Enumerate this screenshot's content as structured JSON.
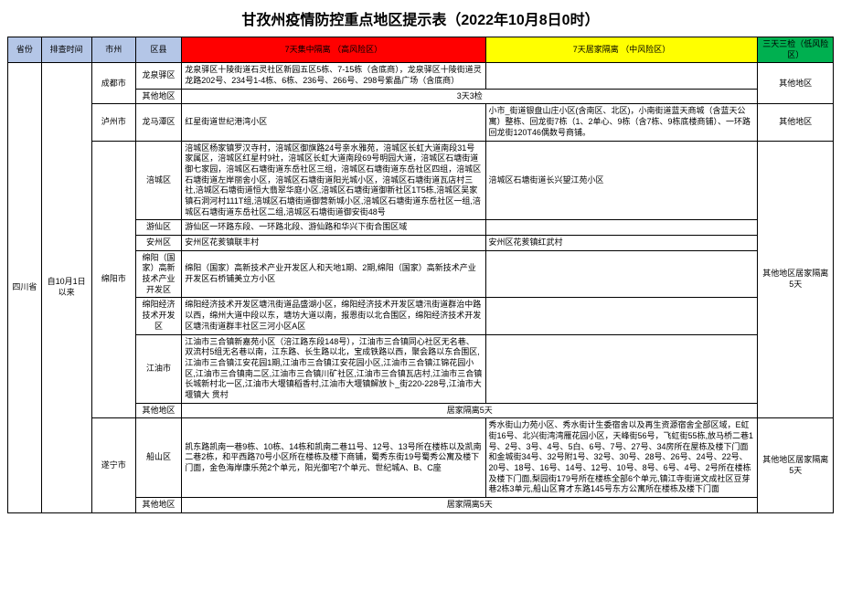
{
  "title": "甘孜州疫情防控重点地区提示表（2022年10月8日0时）",
  "headers": {
    "province": "省份",
    "time": "排查时间",
    "city": "市州",
    "district": "区县",
    "high": "7天集中隔离 （高风险区）",
    "mid": "7天居家隔离  （中风险区）",
    "low": "三天三检（低风险区）"
  },
  "province": "四川省",
  "time": "自10月1日以来",
  "cities": [
    {
      "name": "成都市",
      "low": "其他地区",
      "rows": [
        {
          "district": "龙泉驿区",
          "high": "龙泉驿区十陵街道石灵社区新园五区5栋、7-15栋（含底商），龙泉驿区十陵街道灵龙路202号、234号1-4栋、6栋、236号、266号、298号紫晶广场（含底商）",
          "mid": ""
        },
        {
          "district": "其他地区",
          "high": "",
          "mid": "",
          "centerText": "3天3检",
          "spanHighMid": true
        }
      ]
    },
    {
      "name": "泸州市",
      "low": "其他地区",
      "rows": [
        {
          "district": "龙马潭区",
          "high": "红星街道世纪港湾小区",
          "mid": "小市_街道银盘山庄小区(含南区、北区)，小南街道蓝天商城（含蓝天公寓）整栋、回龙街7栋（1、2单心、9栋（含7栋、9栋底楼商铺）、一环路回龙街120T46偶数号商铺。"
        }
      ]
    },
    {
      "name": "绵阳市",
      "low": "其他地区居家隔离5天",
      "rows": [
        {
          "district": "涪城区",
          "high": "涪城区杨家镇罗汉寺村，涪城区御旗路24号亲水雅苑，涪城区长虹大道南段31号家属区，涪城区红星村9社，涪城区长虹大道南段69号明园大道，涪城区石塘街道御七家园，涪城区石塘街道东岳社区三组，涪城区石塘街道东岳社区四组，涪城区石塘街道左岸丽舍小区，涪城区石塘街道阳光城小区，涪城区石塘街道瓦店村三社,涪城区石塘街道恒大翡翠华庭小区,涪城区石塘街道御新社区1T5栋,涪城区吴家镇石洞河村111T组,涪城区石塘街道御营新城小区,涪城区石塘街道东岳社区一组,涪城区石塘街道东岳社区二组,涪城区石塘街道御安街48号",
          "mid": "涪城区石塘街道长兴望江苑小区"
        },
        {
          "district": "游仙区",
          "high": "游仙区一环路东段、一环路北段、游仙路和华兴下街合围区域",
          "mid": ""
        },
        {
          "district": "安州区",
          "high": "安州区花荄镇联丰村",
          "mid": "安州区花荄镇红武村"
        },
        {
          "district": "绵阳（国家）高新技术产业开发区",
          "high": "绵阳（国家）高新技术产业开发区人和天地1期、2期,绵阳（国家）高新技术产业开发区石桥铺美立方小区",
          "mid": ""
        },
        {
          "district": "绵阳经济技术开发区",
          "high": "绵阳经济技术开发区塘汛街道品盛湖小区，绵阳经济技术开发区塘汛街道群治中路以西，绵州大道中段以东，塘坊大道以南，报恩街以北合围区，绵阳经济技术开发区塘汛街道群丰社区三河小区A区",
          "mid": ""
        },
        {
          "district": "江油市",
          "high": "江油市三合镇新嘉苑小区（涪江路东段148号），江油市三合镇同心社区无名巷、双流村5组无名巷以南，江东路、长生路以北，宝成铁路以西，聚会路以东合围区,江油市三合镇江安花园1期,江油市三合镇江安花园小区,江油市三合镇江锦花园小区,江油市三合镇南二区,江油市三合镇川矿社区,江油市三合镇瓦店村,江油市三合镇长城新村北一区,江油市大堰镇稻香村,江油市大堰镇解放卜_街220-228号,江油市大堰镇大 贯村",
          "mid": ""
        },
        {
          "district": "其他地区",
          "spanHighMid": true,
          "centerText": "居家隔离5天"
        }
      ]
    },
    {
      "name": "遂宁市",
      "low": "其他地区居家隔离5天",
      "rows": [
        {
          "district": "船山区",
          "high": "凯东路凯南一巷9栋、10栋、14栋和凯南二巷11号、12号、13号所在楼栋以及凯南二巷2栋，和平西路70号小区所在楼栋及楼下商铺，蜀秀东街19号蜀秀公寓及楼下门面，金色海岸康乐苑2个单元，阳光御宅7个单元、世纪城A、B、C座",
          "mid": "秀水街山力苑小区、秀水街计生委宿舍以及再生资源宿舍全部区域，E虹街16号、北兴街湾湾雁花园小区，天峰街56号，飞虹街55栋,放马桥二巷1号、2号、3号、4号、5白、6号、7号、27号、34房所在屋栋及楼下门面和金城街34号、32号附1号、32号、30号、28号、26号、24号、22号、20号、18号、16号、14号、12号、10号、8号、6号、4号、2号所在楼栋及楼下门面,梨园街179号所在楼栋全部6个单元,镇江寺街道文成社区豆芽巷2栋3单元,船山区育才东路145号东方公寓所在楼栋及楼下门面"
        },
        {
          "district": "其他地区",
          "spanHighMid": true,
          "centerText": "居家隔离5天"
        }
      ]
    }
  ]
}
